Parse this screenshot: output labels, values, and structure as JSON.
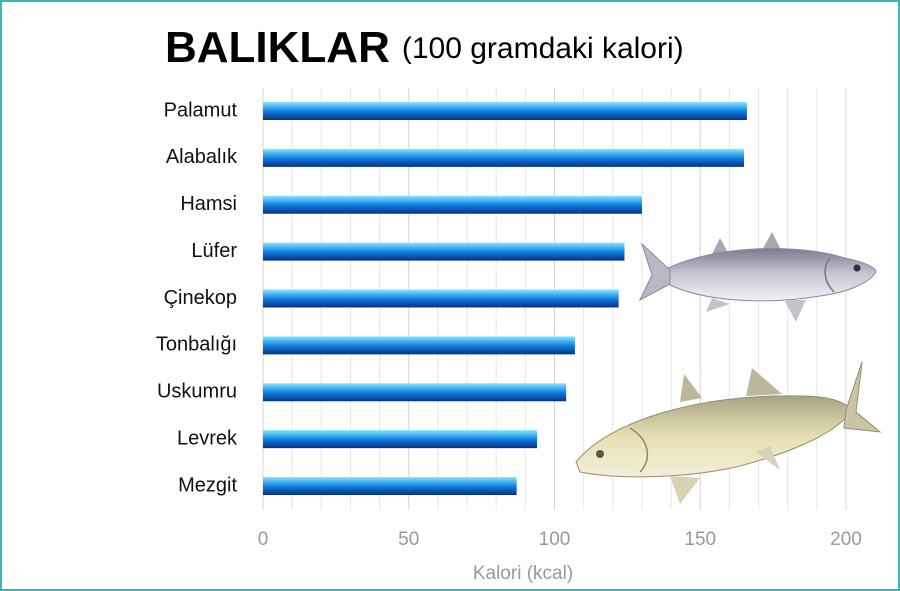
{
  "chart_data": {
    "type": "barh",
    "title": "BALIKLAR",
    "subtitle": "(100 gramdaki kalori)",
    "xlabel": "Kalori (kcal)",
    "categories": [
      "Palamut",
      "Alabalık",
      "Hamsi",
      "Lüfer",
      "Çinekop",
      "Tonbalığı",
      "Uskumru",
      "Levrek",
      "Mezgit"
    ],
    "values": [
      166,
      165,
      130,
      124,
      122,
      107,
      104,
      94,
      87
    ],
    "color": "#1282e0",
    "xlim": [
      0,
      200
    ],
    "xticks": [
      0,
      50,
      100,
      150,
      200
    ],
    "minor_xticks": [
      10,
      20,
      30,
      40,
      60,
      70,
      80,
      90,
      110,
      120,
      130,
      140,
      160,
      170,
      180,
      190
    ],
    "grid": true
  }
}
